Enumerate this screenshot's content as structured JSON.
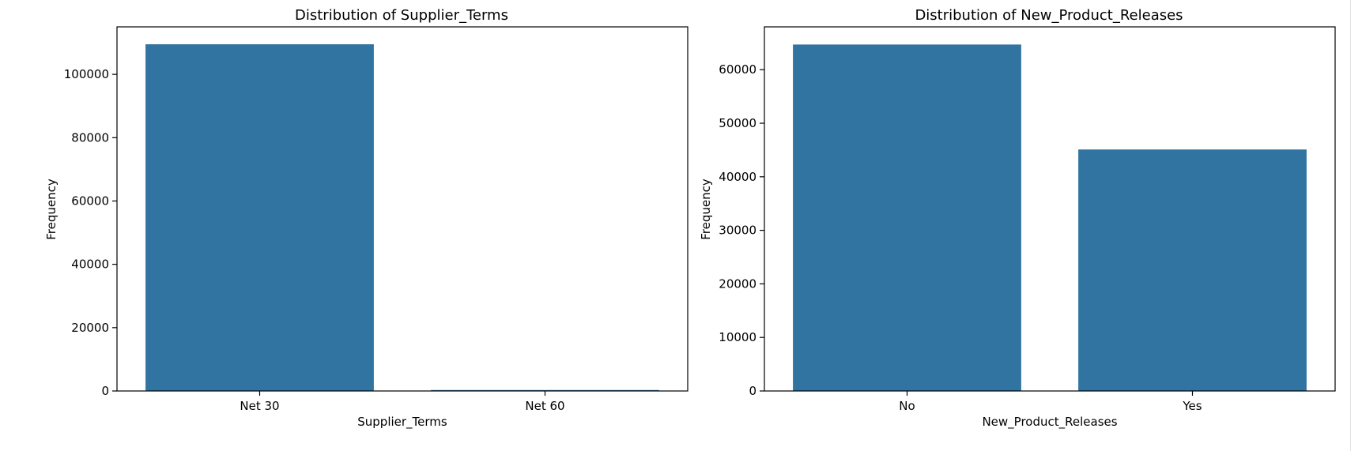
{
  "chart_data": [
    {
      "type": "bar",
      "title": "Distribution of Supplier_Terms",
      "xlabel": "Supplier_Terms",
      "ylabel": "Frequency",
      "categories": [
        "Net 30",
        "Net 60"
      ],
      "values": [
        109500,
        300
      ],
      "ylim": [
        0,
        115000
      ],
      "yticks": [
        0,
        20000,
        40000,
        60000,
        80000,
        100000
      ],
      "ytick_labels": [
        "0",
        "20000",
        "40000",
        "60000",
        "80000",
        "100000"
      ],
      "color": "#3274a1",
      "grid": false
    },
    {
      "type": "bar",
      "title": "Distribution of New_Product_Releases",
      "xlabel": "New_Product_Releases",
      "ylabel": "Frequency",
      "categories": [
        "No",
        "Yes"
      ],
      "values": [
        64700,
        45100
      ],
      "ylim": [
        0,
        68000
      ],
      "yticks": [
        0,
        10000,
        20000,
        30000,
        40000,
        50000,
        60000
      ],
      "ytick_labels": [
        "0",
        "10000",
        "20000",
        "30000",
        "40000",
        "50000",
        "60000"
      ],
      "color": "#3274a1",
      "grid": false
    }
  ]
}
